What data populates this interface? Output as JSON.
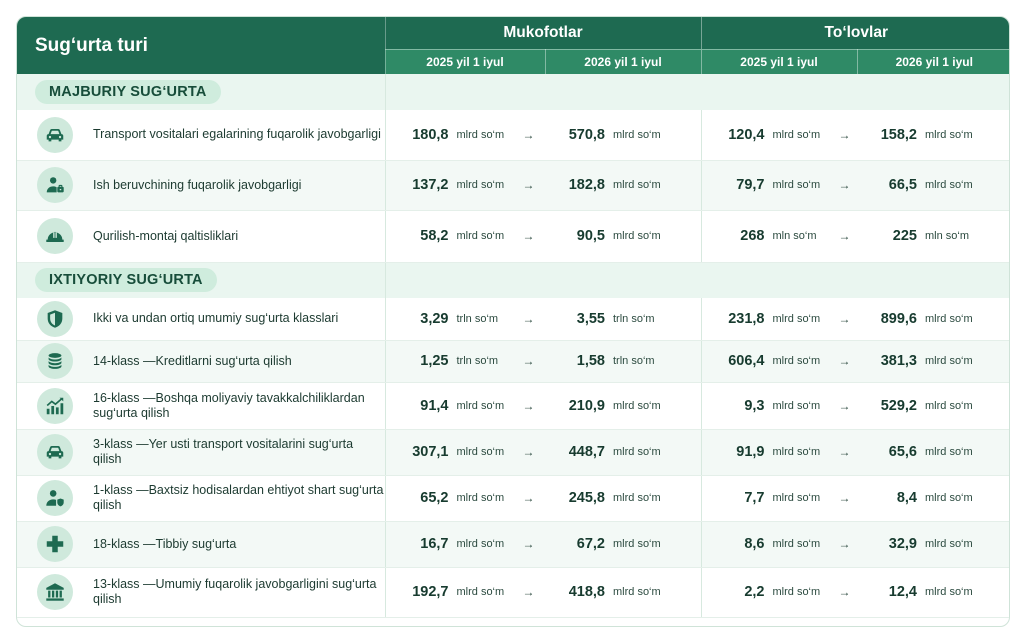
{
  "header": {
    "title": "Sug‘urta turi",
    "premiums": "Mukofotlar",
    "payments": "To‘lovlar",
    "date_2025": "2025 yil 1 iyul",
    "date_2026": "2026 yil 1 iyul"
  },
  "arrow": "→",
  "sections": [
    {
      "label": "MAJBURIY SUG‘URTA",
      "rows": [
        {
          "icon": "car-icon",
          "cls": "",
          "dash": "",
          "name": "Transport vositalari egalarining fuqarolik javobgarligi",
          "p25": "180,8",
          "pu25": "mlrd so‘m",
          "p26": "570,8",
          "pu26": "mlrd so‘m",
          "t25": "120,4",
          "tu25": "mlrd so‘m",
          "t26": "158,2",
          "tu26": "mlrd so‘m"
        },
        {
          "icon": "employer-icon",
          "cls": "",
          "dash": "",
          "name": "Ish beruvchining fuqarolik javobgarligi",
          "p25": "137,2",
          "pu25": "mlrd so‘m",
          "p26": "182,8",
          "pu26": "mlrd so‘m",
          "t25": "79,7",
          "tu25": "mlrd so‘m",
          "t26": "66,5",
          "tu26": "mlrd so‘m"
        },
        {
          "icon": "hard-hat-icon",
          "cls": "",
          "dash": "",
          "name": "Qurilish-montaj qaltisliklari",
          "p25": "58,2",
          "pu25": "mlrd so‘m",
          "p26": "90,5",
          "pu26": "mlrd so‘m",
          "t25": "268",
          "tu25": "mln so‘m",
          "t26": "225",
          "tu26": "mln so‘m"
        }
      ]
    },
    {
      "label": "IXTIYORIY SUG‘URTA",
      "rows": [
        {
          "icon": "shield-icon",
          "cls": "",
          "dash": "",
          "name": "Ikki va undan ortiq umumiy sug‘urta klasslari",
          "p25": "3,29",
          "pu25": "trln so‘m",
          "p26": "3,55",
          "pu26": "trln so‘m",
          "t25": "231,8",
          "tu25": "mlrd so‘m",
          "t26": "899,6",
          "tu26": "mlrd so‘m"
        },
        {
          "icon": "coins-icon",
          "cls": "14-klass",
          "dash": "—",
          "name": "Kreditlarni sug‘urta qilish",
          "p25": "1,25",
          "pu25": "trln so‘m",
          "p26": "1,58",
          "pu26": "trln so‘m",
          "t25": "606,4",
          "tu25": "mlrd so‘m",
          "t26": "381,3",
          "tu26": "mlrd so‘m"
        },
        {
          "icon": "growth-chart-icon",
          "cls": "16-klass",
          "dash": "—",
          "name": "Boshqa moliyaviy tavakkalchiliklardan sug‘urta qilish",
          "p25": "91,4",
          "pu25": "mlrd so‘m",
          "p26": "210,9",
          "pu26": "mlrd so‘m",
          "t25": "9,3",
          "tu25": "mlrd so‘m",
          "t26": "529,2",
          "tu26": "mlrd so‘m"
        },
        {
          "icon": "car-icon",
          "cls": "3-klass",
          "dash": "—",
          "name": "Yer usti transport vositalarini sug‘urta qilish",
          "p25": "307,1",
          "pu25": "mlrd so‘m",
          "p26": "448,7",
          "pu26": "mlrd so‘m",
          "t25": "91,9",
          "tu25": "mlrd so‘m",
          "t26": "65,6",
          "tu26": "mlrd so‘m"
        },
        {
          "icon": "person-shield-icon",
          "cls": "1-klass",
          "dash": "—",
          "name": "Baxtsiz hodisalardan ehtiyot shart sug‘urta qilish",
          "p25": "65,2",
          "pu25": "mlrd so‘m",
          "p26": "245,8",
          "pu26": "mlrd so‘m",
          "t25": "7,7",
          "tu25": "mlrd so‘m",
          "t26": "8,4",
          "tu26": "mlrd so‘m"
        },
        {
          "icon": "medical-cross-icon",
          "cls": "18-klass",
          "dash": "—",
          "name": "Tibbiy sug‘urta",
          "p25": "16,7",
          "pu25": "mlrd so‘m",
          "p26": "67,2",
          "pu26": "mlrd so‘m",
          "t25": "8,6",
          "tu25": "mlrd so‘m",
          "t26": "32,9",
          "tu26": "mlrd so‘m"
        },
        {
          "icon": "bank-icon",
          "cls": "13-klass",
          "dash": "—",
          "name": "Umumiy fuqarolik javobgarligini sug‘urta qilish",
          "p25": "192,7",
          "pu25": "mlrd so‘m",
          "p26": "418,8",
          "pu26": "mlrd so‘m",
          "t25": "2,2",
          "tu25": "mlrd so‘m",
          "t26": "12,4",
          "tu26": "mlrd so‘m"
        }
      ]
    }
  ],
  "colors": {
    "header": "#1e6a51",
    "subheader": "#2f8a66",
    "section_bg": "#eaf6f0",
    "pill": "#cfecdd",
    "icon_bg": "#cfe9dc",
    "icon": "#1e6a51"
  }
}
